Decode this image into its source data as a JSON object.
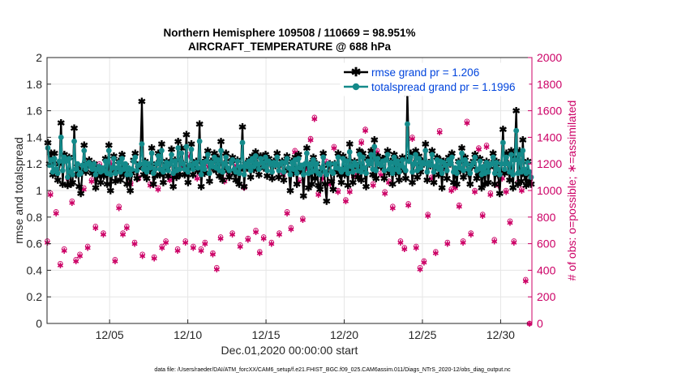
{
  "colors": {
    "rmse": "#000000",
    "spread": "#148a8a",
    "obs": "#cc0066",
    "legend_text": "#0044dd",
    "grid": "#e6e6e6"
  },
  "chart_data": {
    "type": "line",
    "title": "Northern Hemisphere 109508 / 110669 = 98.951%",
    "subtitle": "AIRCRAFT_TEMPERATURE @ 688 hPa",
    "xlabel": "Dec.01,2020 00:00:00 start",
    "ylabel": "rmse and totalspread",
    "y2label": "# of obs: o=possible; ∗=assimilated",
    "x_tick_labels": [
      "12/05",
      "12/10",
      "12/15",
      "12/20",
      "12/25",
      "12/30"
    ],
    "x_tick_days": [
      5,
      10,
      15,
      20,
      25,
      30
    ],
    "xlim": [
      1,
      32
    ],
    "ylim": [
      0,
      2
    ],
    "y_ticks": [
      "0",
      "0.2",
      "0.4",
      "0.6",
      "0.8",
      "1",
      "1.2",
      "1.4",
      "1.6",
      "1.8",
      "2"
    ],
    "y2lim": [
      0,
      2000
    ],
    "y2_ticks": [
      "0",
      "200",
      "400",
      "600",
      "800",
      "1000",
      "1200",
      "1400",
      "1600",
      "1800",
      "2000"
    ],
    "grid": true,
    "legend_position": "top-right",
    "legend": [
      "rmse grand pr = 1.206",
      "totalspread grand pr = 1.1996"
    ],
    "footer": "data file: /Users/raeder/DAI/ATM_forcXX/CAM6_setup/f.e21.FHIST_BGC.f09_025.CAM6assim.011/Diags_NTrS_2020-12/obs_diag_output.nc",
    "rmse": [
      1.36,
      1.2,
      1.28,
      1.12,
      1.28,
      1.15,
      1.08,
      1.2,
      1.51,
      1.05,
      1.27,
      1.25,
      1.04,
      1.25,
      1.05,
      1.06,
      1.47,
      1.12,
      1.18,
      1.03,
      0.98,
      1.15,
      1.34,
      1.14,
      1.2,
      1.23,
      1.18,
      1.13,
      1.2,
      1.02,
      1.11,
      1.17,
      1.06,
      1.15,
      1.11,
      1.24,
      1.05,
      1.34,
      1.0,
      1.13,
      1.26,
      1.07,
      1.14,
      1.22,
      1.08,
      1.27,
      1.12,
      1.19,
      1.05,
      1.15,
      1.0,
      1.13,
      1.23,
      1.28,
      1.09,
      1.17,
      1.2,
      1.67,
      1.12,
      1.22,
      1.09,
      1.19,
      1.15,
      1.32,
      1.05,
      1.11,
      1.2,
      1.28,
      1.12,
      1.35,
      1.06,
      1.16,
      1.22,
      1.11,
      1.2,
      1.31,
      1.03,
      1.23,
      1.1,
      1.37,
      1.12,
      1.32,
      1.2,
      1.12,
      1.42,
      1.06,
      1.17,
      1.35,
      1.12,
      1.2,
      1.22,
      1.15,
      1.5,
      1.03,
      1.21,
      1.13,
      1.24,
      1.3,
      1.07,
      1.22,
      1.17,
      1.28,
      1.15,
      1.25,
      1.11,
      1.37,
      1.08,
      1.2,
      1.28,
      1.15,
      1.1,
      1.22,
      1.25,
      1.13,
      1.08,
      1.23,
      1.05,
      1.16,
      1.48,
      1.03,
      1.2,
      1.17,
      1.23,
      1.1,
      1.26,
      1.16,
      1.29,
      1.2,
      1.12,
      1.26,
      1.22,
      1.17,
      1.27,
      1.11,
      1.24,
      1.2,
      1.09,
      1.22,
      1.19,
      1.28,
      1.1,
      1.2,
      1.22,
      1.08,
      1.22,
      1.26,
      1.15,
      1.0,
      1.22,
      1.13,
      1.25,
      1.05,
      1.27,
      1.15,
      1.18,
      0.96,
      1.19,
      1.32,
      1.02,
      1.2,
      1.05,
      1.25,
      1.09,
      1.2,
      1.04,
      1.01,
      1.14,
      1.28,
      1.05,
      0.92,
      1.19,
      1.2,
      1.07,
      1.01,
      1.2,
      1.15,
      1.28,
      1.12,
      1.06,
      1.26,
      1.12,
      1.23,
      1.04,
      1.35,
      1.16,
      1.06,
      1.22,
      1.18,
      1.1,
      1.3,
      1.08,
      1.28,
      1.15,
      1.03,
      1.24,
      1.2,
      1.3,
      1.12,
      1.38,
      1.09,
      1.26,
      1.2,
      1.18,
      1.24,
      1.09,
      1.25,
      1.3,
      1.13,
      1.22,
      1.05,
      1.27,
      1.13,
      1.23,
      1.08,
      1.18,
      1.25,
      1.15,
      1.09,
      1.73,
      1.24,
      1.28,
      1.06,
      1.2,
      1.3,
      1.1,
      1.26,
      1.14,
      1.22,
      1.2,
      1.35,
      1.08,
      1.21,
      1.19,
      1.3,
      1.06,
      1.17,
      1.25,
      1.12,
      1.23,
      1.02,
      1.22,
      1.18,
      1.09,
      1.25,
      1.2,
      1.28,
      1.06,
      1.14,
      1.05,
      1.22,
      1.15,
      1.32,
      1.1,
      1.25,
      1.2,
      1.13,
      1.05,
      1.18,
      1.22,
      1.27,
      1.09,
      1.13,
      1.24,
      1.02,
      1.17,
      1.05,
      1.22,
      1.06,
      1.18,
      1.2,
      1.28,
      1.05,
      1.22,
      1.12,
      0.98,
      1.2,
      1.46,
      1.13,
      1.28,
      1.2,
      1.08,
      1.3,
      1.02,
      1.25,
      1.6,
      1.05,
      1.3,
      1.07,
      1.38,
      1.12,
      1.04,
      1.22,
      1.07,
      1.05
    ],
    "totalspread": [
      1.32,
      1.19,
      1.23,
      1.14,
      1.24,
      1.16,
      1.13,
      1.22,
      1.4,
      1.15,
      1.25,
      1.22,
      1.1,
      1.24,
      1.14,
      1.12,
      1.37,
      1.16,
      1.2,
      1.12,
      1.13,
      1.19,
      1.3,
      1.16,
      1.2,
      1.21,
      1.18,
      1.16,
      1.2,
      1.12,
      1.16,
      1.18,
      1.14,
      1.17,
      1.15,
      1.22,
      1.13,
      1.3,
      1.12,
      1.17,
      1.24,
      1.13,
      1.17,
      1.21,
      1.14,
      1.24,
      1.16,
      1.2,
      1.12,
      1.17,
      1.12,
      1.16,
      1.22,
      1.25,
      1.15,
      1.19,
      1.2,
      1.35,
      1.16,
      1.21,
      1.14,
      1.2,
      1.17,
      1.28,
      1.13,
      1.16,
      1.2,
      1.26,
      1.16,
      1.3,
      1.14,
      1.18,
      1.21,
      1.15,
      1.2,
      1.27,
      1.13,
      1.22,
      1.15,
      1.32,
      1.16,
      1.28,
      1.2,
      1.16,
      1.33,
      1.14,
      1.19,
      1.31,
      1.16,
      1.2,
      1.21,
      1.17,
      1.37,
      1.12,
      1.21,
      1.16,
      1.22,
      1.27,
      1.13,
      1.21,
      1.18,
      1.25,
      1.17,
      1.23,
      1.15,
      1.3,
      1.14,
      1.2,
      1.25,
      1.17,
      1.15,
      1.21,
      1.23,
      1.16,
      1.14,
      1.22,
      1.13,
      1.18,
      1.36,
      1.12,
      1.2,
      1.18,
      1.22,
      1.15,
      1.24,
      1.18,
      1.26,
      1.2,
      1.16,
      1.24,
      1.21,
      1.18,
      1.25,
      1.15,
      1.22,
      1.2,
      1.14,
      1.21,
      1.19,
      1.25,
      1.15,
      1.2,
      1.21,
      1.14,
      1.21,
      1.24,
      1.17,
      1.12,
      1.21,
      1.16,
      1.23,
      1.13,
      1.24,
      1.17,
      1.19,
      1.12,
      1.2,
      1.28,
      1.13,
      1.2,
      1.14,
      1.23,
      1.15,
      1.2,
      1.13,
      1.12,
      1.17,
      1.25,
      1.14,
      1.12,
      1.2,
      1.2,
      1.14,
      1.13,
      1.2,
      1.17,
      1.25,
      1.16,
      1.14,
      1.24,
      1.16,
      1.22,
      1.13,
      1.29,
      1.18,
      1.14,
      1.21,
      1.19,
      1.15,
      1.27,
      1.14,
      1.25,
      1.17,
      1.13,
      1.22,
      1.2,
      1.27,
      1.16,
      1.33,
      1.15,
      1.24,
      1.2,
      1.19,
      1.22,
      1.15,
      1.23,
      1.27,
      1.16,
      1.21,
      1.13,
      1.25,
      1.16,
      1.22,
      1.14,
      1.19,
      1.23,
      1.17,
      1.15,
      1.5,
      1.22,
      1.25,
      1.14,
      1.2,
      1.27,
      1.15,
      1.24,
      1.17,
      1.21,
      1.2,
      1.3,
      1.14,
      1.21,
      1.19,
      1.27,
      1.14,
      1.18,
      1.23,
      1.16,
      1.22,
      1.13,
      1.21,
      1.19,
      1.15,
      1.23,
      1.2,
      1.25,
      1.14,
      1.17,
      1.13,
      1.21,
      1.17,
      1.28,
      1.15,
      1.23,
      1.2,
      1.16,
      1.13,
      1.19,
      1.21,
      1.25,
      1.15,
      1.16,
      1.22,
      1.12,
      1.18,
      1.13,
      1.21,
      1.14,
      1.19,
      1.2,
      1.25,
      1.13,
      1.21,
      1.16,
      1.12,
      1.2,
      1.36,
      1.16,
      1.25,
      1.2,
      1.14,
      1.27,
      1.12,
      1.23,
      1.45,
      1.13,
      1.27,
      1.14,
      1.3,
      1.16,
      1.13,
      1.21,
      1.14,
      1.1
    ],
    "obs_possible": [
      [
        1.02,
        620
      ],
      [
        1.22,
        980
      ],
      [
        1.58,
        840
      ],
      [
        1.85,
        450
      ],
      [
        2.1,
        560
      ],
      [
        2.35,
        1100
      ],
      [
        2.6,
        920
      ],
      [
        2.85,
        480
      ],
      [
        3.1,
        520
      ],
      [
        3.35,
        1020
      ],
      [
        3.6,
        580
      ],
      [
        3.85,
        1080
      ],
      [
        4.1,
        730
      ],
      [
        4.35,
        1200
      ],
      [
        4.6,
        680
      ],
      [
        4.85,
        1180
      ],
      [
        5.1,
        1210
      ],
      [
        5.35,
        480
      ],
      [
        5.6,
        880
      ],
      [
        5.85,
        680
      ],
      [
        6.1,
        730
      ],
      [
        6.35,
        1060
      ],
      [
        6.6,
        610
      ],
      [
        6.85,
        1100
      ],
      [
        7.1,
        520
      ],
      [
        7.35,
        1150
      ],
      [
        7.6,
        1050
      ],
      [
        7.85,
        500
      ],
      [
        8.1,
        1020
      ],
      [
        8.35,
        580
      ],
      [
        8.6,
        620
      ],
      [
        8.85,
        1090
      ],
      [
        9.1,
        1110
      ],
      [
        9.35,
        560
      ],
      [
        9.6,
        1180
      ],
      [
        9.85,
        620
      ],
      [
        10.1,
        1270
      ],
      [
        10.35,
        580
      ],
      [
        10.6,
        1100
      ],
      [
        10.85,
        560
      ],
      [
        11.1,
        610
      ],
      [
        11.35,
        1190
      ],
      [
        11.6,
        530
      ],
      [
        11.85,
        420
      ],
      [
        12.1,
        650
      ],
      [
        12.35,
        1080
      ],
      [
        12.6,
        1140
      ],
      [
        12.85,
        680
      ],
      [
        13.1,
        1200
      ],
      [
        13.35,
        590
      ],
      [
        13.6,
        1030
      ],
      [
        13.85,
        640
      ],
      [
        14.1,
        1180
      ],
      [
        14.35,
        700
      ],
      [
        14.6,
        540
      ],
      [
        14.85,
        650
      ],
      [
        15.1,
        1210
      ],
      [
        15.35,
        610
      ],
      [
        15.6,
        1220
      ],
      [
        15.85,
        680
      ],
      [
        16.1,
        1130
      ],
      [
        16.35,
        840
      ],
      [
        16.6,
        720
      ],
      [
        16.85,
        1300
      ],
      [
        17.1,
        1080
      ],
      [
        17.35,
        790
      ],
      [
        17.6,
        1180
      ],
      [
        17.85,
        1390
      ],
      [
        18.1,
        1550
      ],
      [
        18.35,
        980
      ],
      [
        18.6,
        1100
      ],
      [
        18.85,
        1220
      ],
      [
        19.1,
        1060
      ],
      [
        19.35,
        1330
      ],
      [
        19.6,
        1000
      ],
      [
        19.85,
        1140
      ],
      [
        20.1,
        930
      ],
      [
        20.35,
        1000
      ],
      [
        20.6,
        1120
      ],
      [
        20.85,
        1130
      ],
      [
        21.1,
        1370
      ],
      [
        21.35,
        1460
      ],
      [
        21.6,
        1230
      ],
      [
        21.85,
        1050
      ],
      [
        22.1,
        1300
      ],
      [
        22.35,
        1130
      ],
      [
        22.6,
        990
      ],
      [
        22.85,
        1070
      ],
      [
        23.1,
        880
      ],
      [
        23.35,
        1170
      ],
      [
        23.6,
        620
      ],
      [
        23.85,
        570
      ],
      [
        24.1,
        900
      ],
      [
        24.35,
        1400
      ],
      [
        24.6,
        580
      ],
      [
        24.85,
        420
      ],
      [
        25.1,
        470
      ],
      [
        25.35,
        820
      ],
      [
        25.6,
        1100
      ],
      [
        25.85,
        540
      ],
      [
        26.1,
        1450
      ],
      [
        26.35,
        1180
      ],
      [
        26.6,
        610
      ],
      [
        26.85,
        1010
      ],
      [
        27.1,
        1030
      ],
      [
        27.35,
        890
      ],
      [
        27.6,
        620
      ],
      [
        27.85,
        1520
      ],
      [
        28.1,
        680
      ],
      [
        28.35,
        1000
      ],
      [
        28.6,
        1320
      ],
      [
        28.85,
        820
      ],
      [
        29.1,
        1340
      ],
      [
        29.35,
        980
      ],
      [
        29.6,
        630
      ],
      [
        29.85,
        1050
      ],
      [
        30.1,
        1100
      ],
      [
        30.35,
        1000
      ],
      [
        30.6,
        770
      ],
      [
        30.85,
        620
      ],
      [
        31.1,
        1060
      ],
      [
        31.35,
        1010
      ],
      [
        31.6,
        330
      ],
      [
        31.85,
        0
      ]
    ],
    "obs_assimilated": [
      [
        1.02,
        610
      ],
      [
        1.22,
        970
      ],
      [
        1.58,
        830
      ],
      [
        1.85,
        440
      ],
      [
        2.1,
        550
      ],
      [
        2.35,
        1090
      ],
      [
        2.6,
        910
      ],
      [
        2.85,
        470
      ],
      [
        3.1,
        510
      ],
      [
        3.35,
        1010
      ],
      [
        3.6,
        570
      ],
      [
        3.85,
        1070
      ],
      [
        4.1,
        720
      ],
      [
        4.35,
        1190
      ],
      [
        4.6,
        670
      ],
      [
        4.85,
        1170
      ],
      [
        5.1,
        1200
      ],
      [
        5.35,
        470
      ],
      [
        5.6,
        870
      ],
      [
        5.85,
        670
      ],
      [
        6.1,
        720
      ],
      [
        6.35,
        1050
      ],
      [
        6.6,
        600
      ],
      [
        6.85,
        1090
      ],
      [
        7.1,
        510
      ],
      [
        7.35,
        1140
      ],
      [
        7.6,
        1040
      ],
      [
        7.85,
        490
      ],
      [
        8.1,
        1010
      ],
      [
        8.35,
        570
      ],
      [
        8.6,
        610
      ],
      [
        8.85,
        1080
      ],
      [
        9.1,
        1100
      ],
      [
        9.35,
        550
      ],
      [
        9.6,
        1170
      ],
      [
        9.85,
        610
      ],
      [
        10.1,
        1260
      ],
      [
        10.35,
        570
      ],
      [
        10.6,
        1090
      ],
      [
        10.85,
        550
      ],
      [
        11.1,
        600
      ],
      [
        11.35,
        1180
      ],
      [
        11.6,
        520
      ],
      [
        11.85,
        410
      ],
      [
        12.1,
        640
      ],
      [
        12.35,
        1070
      ],
      [
        12.6,
        1130
      ],
      [
        12.85,
        670
      ],
      [
        13.1,
        1190
      ],
      [
        13.35,
        580
      ],
      [
        13.6,
        1020
      ],
      [
        13.85,
        630
      ],
      [
        14.1,
        1170
      ],
      [
        14.35,
        690
      ],
      [
        14.6,
        530
      ],
      [
        14.85,
        640
      ],
      [
        15.1,
        1200
      ],
      [
        15.35,
        600
      ],
      [
        15.6,
        1210
      ],
      [
        15.85,
        670
      ],
      [
        16.1,
        1120
      ],
      [
        16.35,
        830
      ],
      [
        16.6,
        710
      ],
      [
        16.85,
        1290
      ],
      [
        17.1,
        1070
      ],
      [
        17.35,
        780
      ],
      [
        17.6,
        1170
      ],
      [
        17.85,
        1380
      ],
      [
        18.1,
        1540
      ],
      [
        18.35,
        970
      ],
      [
        18.6,
        1090
      ],
      [
        18.85,
        1210
      ],
      [
        19.1,
        1050
      ],
      [
        19.35,
        1320
      ],
      [
        19.6,
        990
      ],
      [
        19.85,
        1130
      ],
      [
        20.1,
        920
      ],
      [
        20.35,
        990
      ],
      [
        20.6,
        1110
      ],
      [
        20.85,
        1120
      ],
      [
        21.1,
        1360
      ],
      [
        21.35,
        1450
      ],
      [
        21.6,
        1220
      ],
      [
        21.85,
        1040
      ],
      [
        22.1,
        1290
      ],
      [
        22.35,
        1120
      ],
      [
        22.6,
        980
      ],
      [
        22.85,
        1060
      ],
      [
        23.1,
        870
      ],
      [
        23.35,
        1160
      ],
      [
        23.6,
        610
      ],
      [
        23.85,
        560
      ],
      [
        24.1,
        890
      ],
      [
        24.35,
        1390
      ],
      [
        24.6,
        570
      ],
      [
        24.85,
        410
      ],
      [
        25.1,
        460
      ],
      [
        25.35,
        810
      ],
      [
        25.6,
        1090
      ],
      [
        25.85,
        530
      ],
      [
        26.1,
        1440
      ],
      [
        26.35,
        1170
      ],
      [
        26.6,
        600
      ],
      [
        26.85,
        1000
      ],
      [
        27.1,
        1020
      ],
      [
        27.35,
        880
      ],
      [
        27.6,
        610
      ],
      [
        27.85,
        1510
      ],
      [
        28.1,
        670
      ],
      [
        28.35,
        990
      ],
      [
        28.6,
        1310
      ],
      [
        28.85,
        810
      ],
      [
        29.1,
        1330
      ],
      [
        29.35,
        970
      ],
      [
        29.6,
        620
      ],
      [
        29.85,
        1040
      ],
      [
        30.1,
        1090
      ],
      [
        30.35,
        990
      ],
      [
        30.6,
        760
      ],
      [
        30.85,
        610
      ],
      [
        31.1,
        1050
      ],
      [
        31.35,
        1000
      ],
      [
        31.6,
        320
      ],
      [
        31.85,
        0
      ]
    ]
  }
}
